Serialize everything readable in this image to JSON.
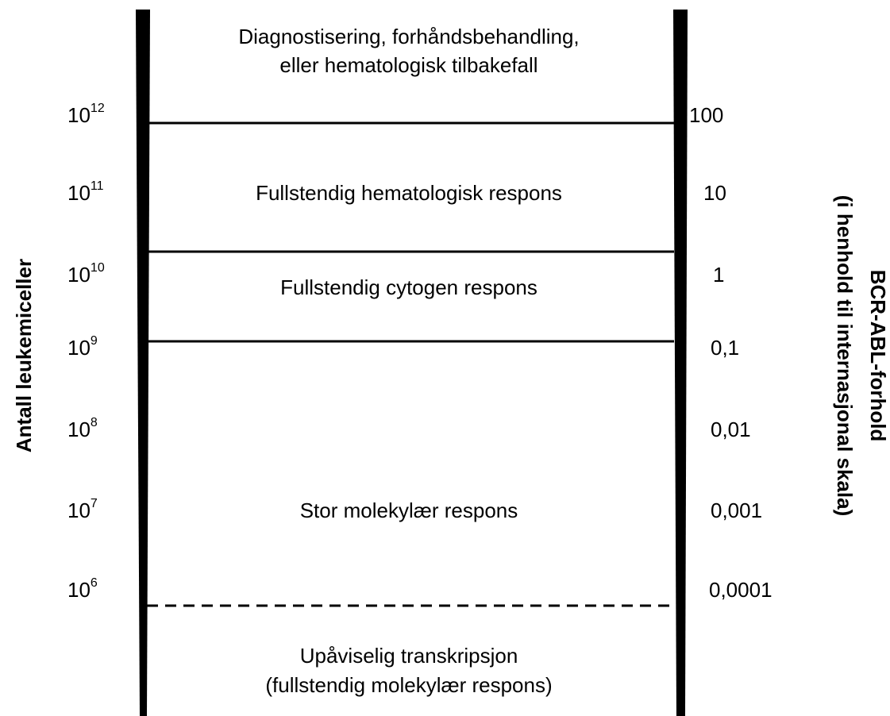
{
  "left_axis": {
    "title": "Antall leukemiceller",
    "labels": [
      {
        "base": "10",
        "exponent": "12"
      },
      {
        "base": "10",
        "exponent": "11"
      },
      {
        "base": "10",
        "exponent": "10"
      },
      {
        "base": "10",
        "exponent": "9"
      },
      {
        "base": "10",
        "exponent": "8"
      },
      {
        "base": "10",
        "exponent": "7"
      },
      {
        "base": "10",
        "exponent": "6"
      }
    ]
  },
  "right_axis": {
    "title": [
      "BCR-ABL-forhold",
      "(i henhold til internasjonal skala)"
    ],
    "labels": [
      "100",
      "10",
      "1",
      "0,1",
      "0,01",
      "0,001",
      "0,0001"
    ]
  },
  "zones": [
    {
      "lines": [
        "Diagnostisering, forhåndsbehandling,",
        "eller hematologisk tilbakefall"
      ]
    },
    {
      "lines": [
        "Fullstendig hematologisk respons"
      ]
    },
    {
      "lines": [
        "Fullstendig cytogen respons"
      ]
    },
    {
      "lines": [
        "Stor molekylær respons"
      ]
    },
    {
      "lines": [
        "Upåviselig transkripsjon",
        "(fullstendig molekylær respons)"
      ]
    }
  ]
}
